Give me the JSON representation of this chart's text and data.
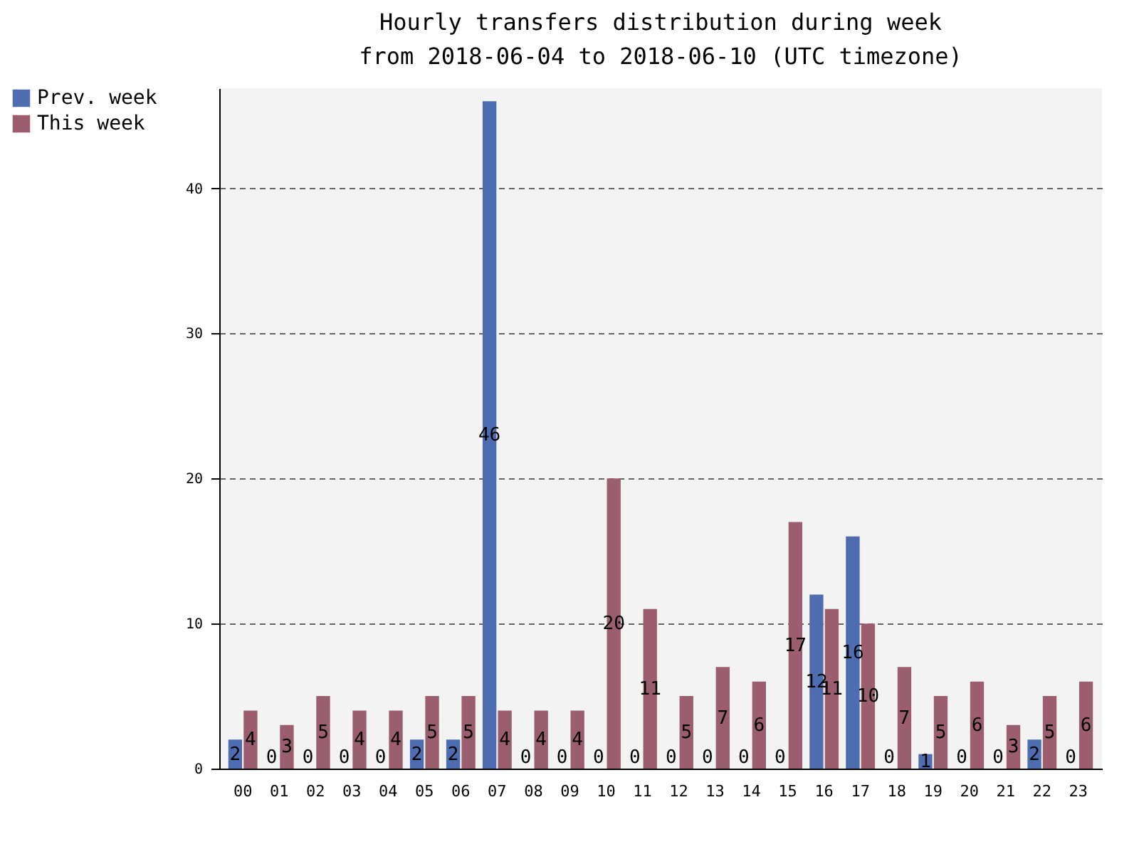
{
  "chart_data": {
    "type": "bar",
    "title": "Hourly transfers distribution during week",
    "subtitle": "from 2018-06-04 to 2018-06-10 (UTC timezone)",
    "categories": [
      "00",
      "01",
      "02",
      "03",
      "04",
      "05",
      "06",
      "07",
      "08",
      "09",
      "10",
      "11",
      "12",
      "13",
      "14",
      "15",
      "16",
      "17",
      "18",
      "19",
      "20",
      "21",
      "22",
      "23"
    ],
    "series": [
      {
        "name": "Prev. week",
        "color": "#4e6cb0",
        "values": [
          2,
          0,
          0,
          0,
          0,
          2,
          2,
          46,
          0,
          0,
          0,
          0,
          0,
          0,
          0,
          0,
          12,
          16,
          0,
          1,
          0,
          0,
          2,
          0
        ]
      },
      {
        "name": "This week",
        "color": "#9a5e6e",
        "values": [
          4,
          3,
          5,
          4,
          4,
          5,
          5,
          4,
          4,
          4,
          20,
          11,
          5,
          7,
          6,
          17,
          11,
          10,
          7,
          5,
          6,
          3,
          5,
          6
        ]
      }
    ],
    "ylim": [
      0,
      46.9
    ],
    "yticks": [
      0,
      10,
      20,
      30,
      40
    ],
    "grid": "y",
    "legend": "top left",
    "data_labels": true
  }
}
